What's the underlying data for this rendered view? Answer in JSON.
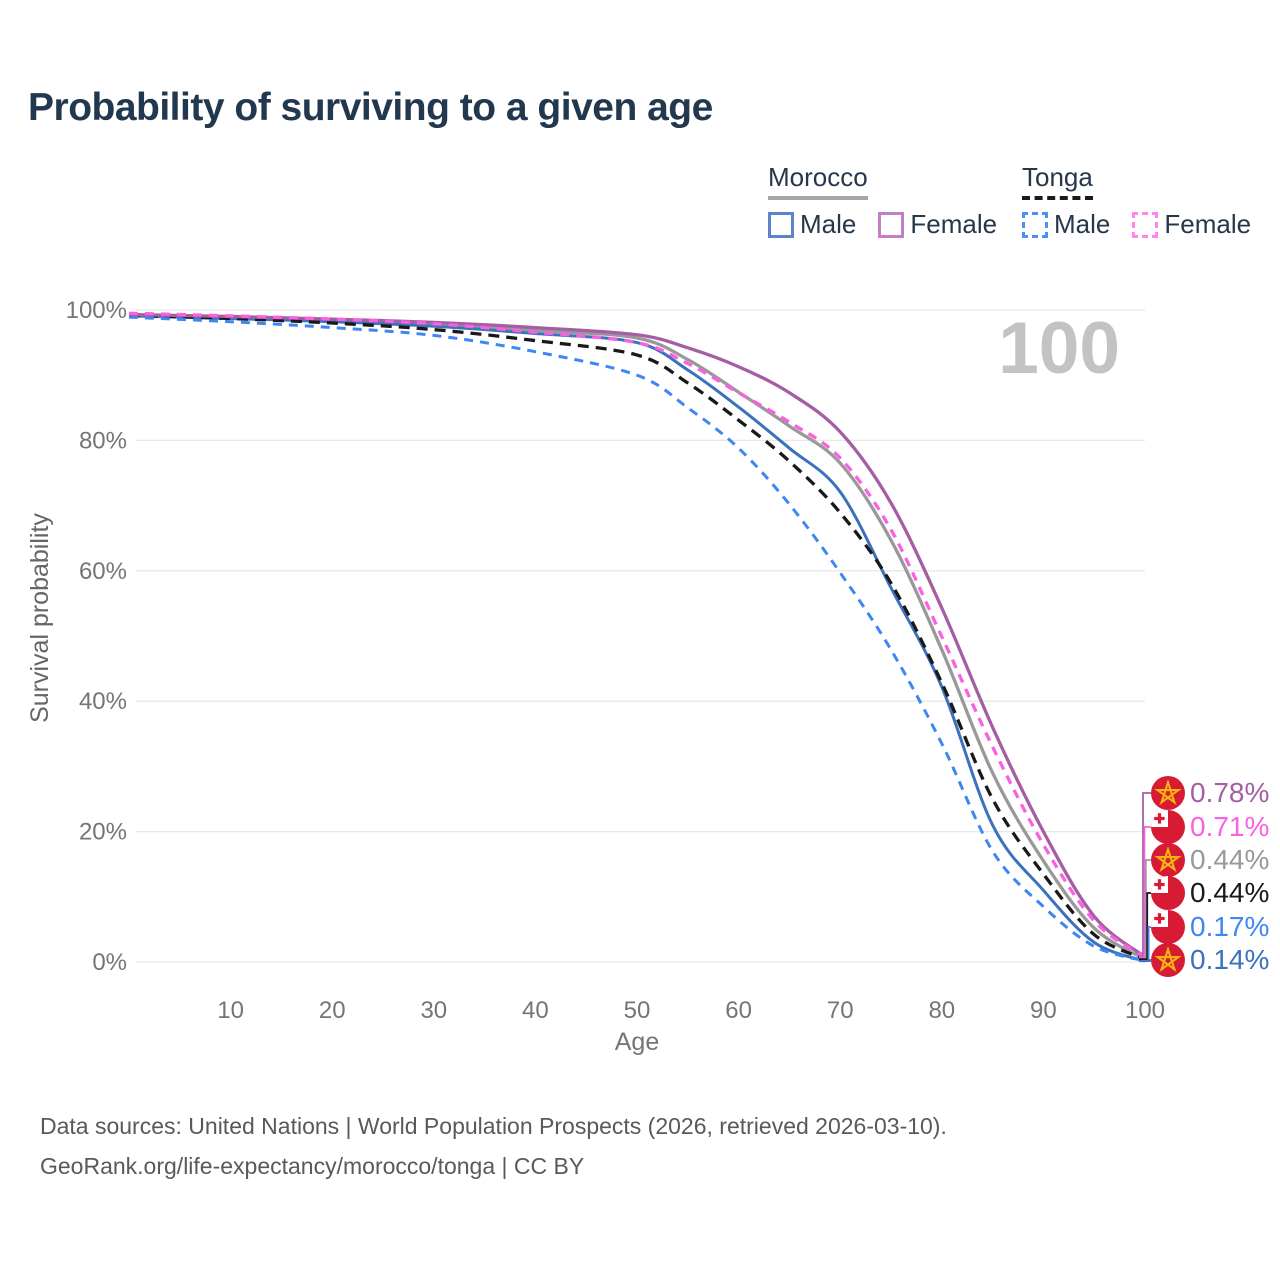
{
  "title": "Probability of surviving to a given age",
  "watermark": "100",
  "legend": {
    "groups": [
      {
        "label": "Morocco",
        "line_color": "#a6a6a6",
        "line_style": "solid",
        "items": [
          {
            "label": "Male",
            "color": "#5c84c9"
          },
          {
            "label": "Female",
            "color": "#c47fc4"
          }
        ]
      },
      {
        "label": "Tonga",
        "line_color": "#1a1a1a",
        "line_style": "dashed",
        "items": [
          {
            "label": "Male",
            "color": "#4a90f7"
          },
          {
            "label": "Female",
            "color": "#ff85e8"
          }
        ]
      }
    ]
  },
  "chart_data": {
    "type": "line",
    "title": "Probability of surviving to a given age",
    "xlabel": "Age",
    "ylabel": "Survival probability",
    "xlim": [
      0,
      100
    ],
    "ylim": [
      0,
      100
    ],
    "grid": "horizontal",
    "legend_position": "top-right",
    "x_ticks": [
      10,
      20,
      30,
      40,
      50,
      60,
      70,
      80,
      90,
      100
    ],
    "y_ticks": [
      0,
      20,
      40,
      60,
      80,
      100
    ],
    "y_tick_labels": [
      "0%",
      "20%",
      "40%",
      "60%",
      "80%",
      "100%"
    ],
    "x": [
      0,
      10,
      20,
      30,
      40,
      50,
      55,
      60,
      65,
      70,
      75,
      80,
      85,
      90,
      95,
      100
    ],
    "series": [
      {
        "name": "Morocco Both sexes",
        "country": "Morocco",
        "sex": "Both",
        "color": "#999999",
        "dash": false,
        "values": [
          99.2,
          98.8,
          98.4,
          97.8,
          96.9,
          95.7,
          92.4,
          87.4,
          82.2,
          76.5,
          64.7,
          47.9,
          29.0,
          15.5,
          5.2,
          0.44
        ],
        "end_label": "0.44%"
      },
      {
        "name": "Morocco Male",
        "country": "Morocco",
        "sex": "Male",
        "color": "#3b71bd",
        "dash": false,
        "values": [
          99.1,
          98.7,
          98.2,
          97.5,
          96.4,
          95.0,
          90.8,
          85.1,
          78.8,
          72.1,
          57.4,
          42.2,
          21.0,
          11.0,
          3.0,
          0.14
        ],
        "end_label": "0.14%"
      },
      {
        "name": "Tonga Both sexes",
        "country": "Tonga",
        "sex": "Both",
        "color": "#191919",
        "dash": true,
        "values": [
          99.2,
          98.7,
          98.0,
          97.0,
          95.3,
          93.1,
          88.8,
          83.1,
          76.8,
          68.9,
          58.1,
          42.8,
          25.0,
          13.5,
          4.2,
          0.44
        ],
        "end_label": "0.44%"
      },
      {
        "name": "Tonga Male",
        "country": "Tonga",
        "sex": "Male",
        "color": "#3e87f2",
        "dash": true,
        "values": [
          98.9,
          98.2,
          97.3,
          96.1,
          93.6,
          90.0,
          85.0,
          78.8,
          70.2,
          59.7,
          47.9,
          33.5,
          17.0,
          8.5,
          2.4,
          0.17
        ],
        "end_label": "0.17%"
      },
      {
        "name": "Morocco Female",
        "country": "Morocco",
        "sex": "Female",
        "color": "#a55ea3",
        "dash": false,
        "values": [
          99.3,
          99.0,
          98.6,
          98.1,
          97.3,
          96.2,
          94.2,
          91.3,
          87.3,
          81.3,
          70.4,
          54.3,
          36.0,
          20.0,
          7.0,
          0.78
        ],
        "end_label": "0.78%"
      },
      {
        "name": "Tonga Female",
        "country": "Tonga",
        "sex": "Female",
        "color": "#fb5fe2",
        "dash": true,
        "values": [
          99.5,
          99.1,
          98.6,
          97.9,
          96.6,
          95.0,
          91.8,
          87.3,
          82.8,
          77.3,
          66.3,
          49.9,
          33.0,
          18.0,
          6.3,
          0.71
        ],
        "end_label": "0.71%"
      }
    ],
    "end_labels": [
      {
        "text": "0.78%",
        "value": 0.78,
        "series": "Morocco Female",
        "flag": "morocco",
        "color": "#a55ea3"
      },
      {
        "text": "0.71%",
        "value": 0.71,
        "series": "Tonga Female",
        "flag": "tonga",
        "color": "#fb5fe2"
      },
      {
        "text": "0.44%",
        "value": 0.44,
        "series": "Morocco Both sexes",
        "flag": "morocco",
        "color": "#999999"
      },
      {
        "text": "0.44%",
        "value": 0.44,
        "series": "Tonga Both sexes",
        "flag": "tonga",
        "color": "#191919"
      },
      {
        "text": "0.17%",
        "value": 0.17,
        "series": "Tonga Male",
        "flag": "tonga",
        "color": "#3e87f2"
      },
      {
        "text": "0.14%",
        "value": 0.14,
        "series": "Morocco Male",
        "flag": "morocco",
        "color": "#3b71bd"
      }
    ]
  },
  "footer": {
    "line1": "Data sources: United Nations | World Population Prospects (2026, retrieved 2026-03-10).",
    "line2": "GeoRank.org/life-expectancy/morocco/tonga | CC BY"
  }
}
